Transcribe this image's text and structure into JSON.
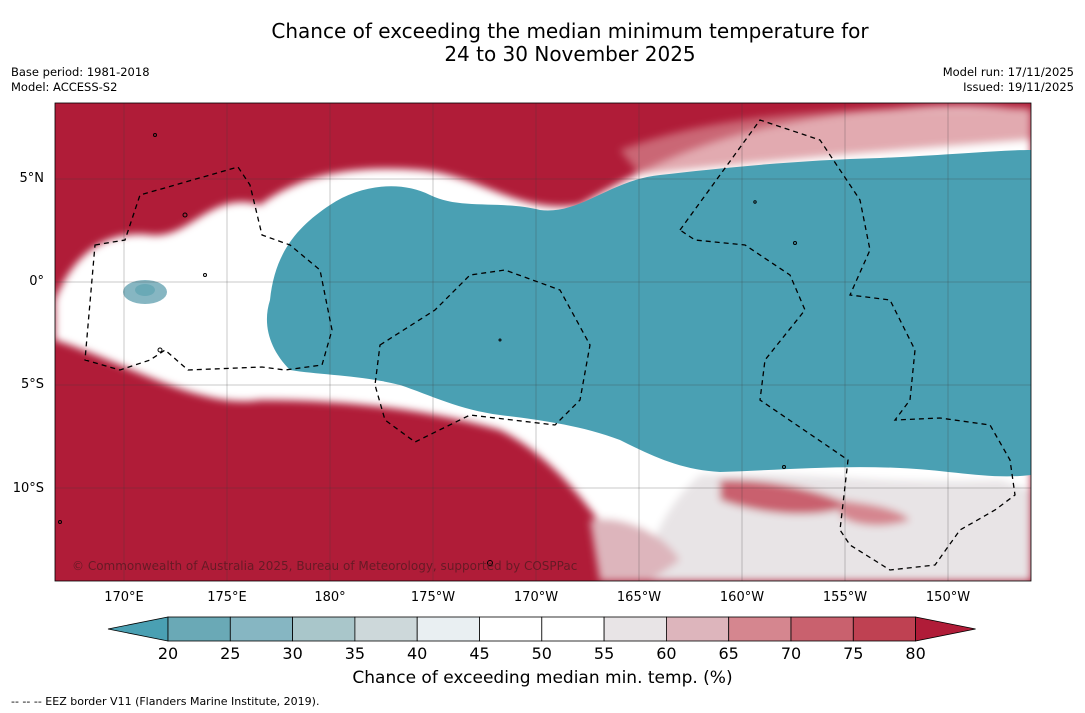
{
  "header": {
    "title_line1": "Chance of exceeding the median minimum temperature for",
    "title_line2": "24 to 30 November 2025",
    "base_period": "Base period: 1981-2018",
    "model": "Model: ACCESS-S2",
    "model_run": "Model run: 17/11/2025",
    "issued": "Issued: 19/11/2025"
  },
  "map": {
    "lat_labels": [
      "5°N",
      "0°",
      "5°S",
      "10°S"
    ],
    "lon_labels": [
      "170°E",
      "175°E",
      "180°",
      "175°W",
      "170°W",
      "165°W",
      "160°W",
      "155°W",
      "150°W"
    ],
    "copyright": "© Commonwealth of Australia 2025, Bureau of Meteorology, supported by COSPPac",
    "colors": {
      "high": "#b01c38",
      "low": "#4aa0b3",
      "mid": "#ffffff"
    }
  },
  "colorbar": {
    "ticks": [
      "20",
      "25",
      "30",
      "35",
      "40",
      "45",
      "50",
      "55",
      "60",
      "65",
      "70",
      "75",
      "80"
    ],
    "colors": [
      "#4aa0b3",
      "#6aa9b6",
      "#86b6c2",
      "#a9c6ca",
      "#cdd8da",
      "#e9eff2",
      "#ffffff",
      "#ffffff",
      "#e8e4e6",
      "#ddb5bc",
      "#d5868f",
      "#c9616e",
      "#bf4152",
      "#b01c38"
    ],
    "label": "Chance of exceeding median min. temp. (%)"
  },
  "footer": {
    "legend": "--  --  -- EEZ border V11 (Flanders Marine Institute, 2019)."
  }
}
